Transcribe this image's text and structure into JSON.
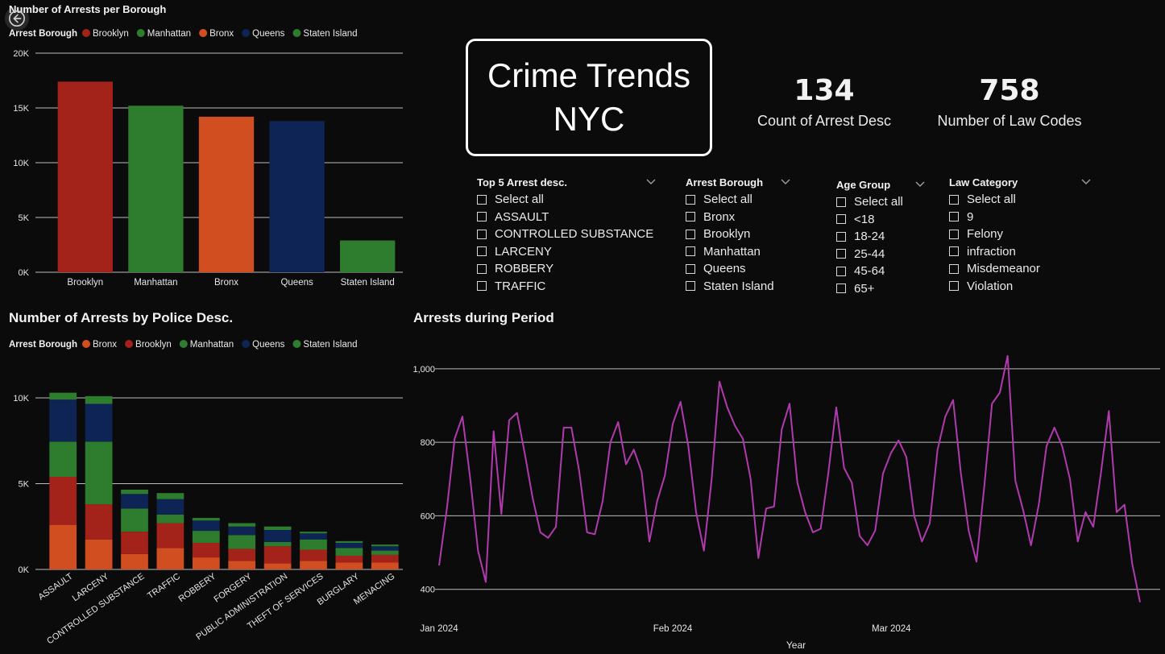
{
  "back_button": {
    "icon": "back-arrow-icon"
  },
  "title_card": {
    "text": "Crime Trends\nNYC"
  },
  "kpis": [
    {
      "value": "134",
      "label": "Count of Arrest Desc"
    },
    {
      "value": "758",
      "label": "Number of Law Codes"
    }
  ],
  "slicers": [
    {
      "title": "Top 5 Arrest desc.",
      "items": [
        "Select all",
        "ASSAULT",
        "CONTROLLED SUBSTANCE",
        "LARCENY",
        "ROBBERY",
        "TRAFFIC"
      ]
    },
    {
      "title": "Arrest Borough",
      "items": [
        "Select all",
        "Bronx",
        "Brooklyn",
        "Manhattan",
        "Queens",
        "Staten Island"
      ]
    },
    {
      "title": "Age Group",
      "items": [
        "Select all",
        "<18",
        "18-24",
        "25-44",
        "45-64",
        "65+"
      ]
    },
    {
      "title": "Law Category",
      "items": [
        "Select all",
        "9",
        "Felony",
        "infraction",
        "Misdemeanor",
        "Violation"
      ]
    }
  ],
  "chart_data": [
    {
      "type": "bar",
      "title": "Number of Arrests per Borough",
      "legend_title": "Arrest Borough",
      "legend": [
        {
          "name": "Brooklyn",
          "color": "#a3221a"
        },
        {
          "name": "Manhattan",
          "color": "#2e7d2e"
        },
        {
          "name": "Bronx",
          "color": "#d04e20"
        },
        {
          "name": "Queens",
          "color": "#0d2455"
        },
        {
          "name": "Staten Island",
          "color": "#2e7d2e"
        }
      ],
      "categories": [
        "Brooklyn",
        "Manhattan",
        "Bronx",
        "Queens",
        "Staten Island"
      ],
      "values": [
        17400,
        15200,
        14200,
        13800,
        2900
      ],
      "colors": [
        "#a3221a",
        "#2e7d2e",
        "#d04e20",
        "#0d2455",
        "#2e7d2e"
      ],
      "ylim": [
        0,
        20000
      ],
      "yticks": [
        0,
        5000,
        10000,
        15000,
        20000
      ],
      "ytick_labels": [
        "0K",
        "5K",
        "10K",
        "15K",
        "20K"
      ],
      "grid": true,
      "legend_position": "top-left"
    },
    {
      "type": "bar",
      "stacked": true,
      "title": "Number of Arrests by Police Desc.",
      "legend_title": "Arrest Borough",
      "categories": [
        "ASSAULT",
        "LARCENY",
        "CONTROLLED SUBSTANCE",
        "TRAFFIC",
        "ROBBERY",
        "FORGERY",
        "PUBLIC ADMINISTRATION",
        "THEFT OF SERVICES",
        "BURGLARY",
        "MENACING"
      ],
      "series": [
        {
          "name": "Bronx",
          "color": "#d04e20",
          "values": [
            2600,
            1750,
            900,
            1250,
            700,
            500,
            350,
            500,
            400,
            400
          ]
        },
        {
          "name": "Brooklyn",
          "color": "#a3221a",
          "values": [
            2800,
            2050,
            1300,
            1450,
            850,
            700,
            1000,
            650,
            400,
            450
          ]
        },
        {
          "name": "Manhattan",
          "color": "#2e7d2e",
          "values": [
            2050,
            3650,
            1350,
            500,
            700,
            800,
            250,
            600,
            450,
            250
          ]
        },
        {
          "name": "Queens",
          "color": "#0d2455",
          "values": [
            2450,
            2200,
            850,
            900,
            600,
            500,
            700,
            350,
            300,
            250
          ]
        },
        {
          "name": "Staten Island",
          "color": "#2e7d2e",
          "values": [
            400,
            450,
            250,
            350,
            150,
            200,
            200,
            100,
            100,
            100
          ]
        }
      ],
      "ylim": [
        0,
        10000
      ],
      "yticks": [
        0,
        5000,
        10000
      ],
      "ytick_labels": [
        "0K",
        "5K",
        "10K"
      ],
      "grid": true,
      "legend_position": "top-left"
    },
    {
      "type": "line",
      "title": "Arrests during Period",
      "xlabel": "Year",
      "color": "#b03aae",
      "x_start": "2024-01-01",
      "x_end": "2024-04-03",
      "x_ticks": [
        "2024-01-01",
        "2024-02-01",
        "2024-03-01"
      ],
      "x_tick_labels": [
        "Jan 2024",
        "Feb 2024",
        "Mar 2024"
      ],
      "ylim": [
        360,
        1050
      ],
      "yticks": [
        400,
        600,
        800,
        1000
      ],
      "ytick_labels": [
        "400",
        "600",
        "800",
        "1,000"
      ],
      "grid": true,
      "values": [
        465,
        620,
        810,
        870,
        700,
        505,
        420,
        830,
        605,
        860,
        880,
        770,
        650,
        555,
        540,
        570,
        840,
        840,
        720,
        555,
        550,
        640,
        800,
        855,
        740,
        780,
        720,
        530,
        640,
        710,
        850,
        910,
        790,
        610,
        505,
        700,
        965,
        895,
        845,
        810,
        700,
        485,
        620,
        625,
        835,
        905,
        690,
        610,
        555,
        565,
        720,
        895,
        730,
        690,
        545,
        520,
        560,
        715,
        770,
        805,
        760,
        600,
        530,
        580,
        780,
        870,
        915,
        715,
        560,
        475,
        680,
        905,
        935,
        1035,
        695,
        615,
        520,
        630,
        790,
        840,
        790,
        700,
        530,
        610,
        570,
        720,
        885,
        610,
        630,
        470,
        365
      ]
    }
  ]
}
